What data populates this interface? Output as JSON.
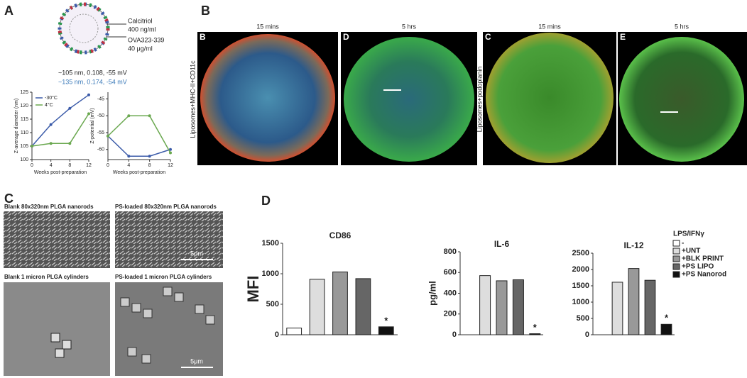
{
  "panel_labels": [
    "A",
    "B",
    "C",
    "D"
  ],
  "liposome": {
    "drug1": "Calcitriol",
    "dose1": "400 ng/ml",
    "drug2": "OVA323-339",
    "dose2": "40 μg/ml",
    "stats1": "~105 nm, 0.108, -55 mV",
    "stats2": "~135 nm, 0.174, -54 mV"
  },
  "microscopy": {
    "times": [
      "15 mins",
      "5 hrs",
      "15 mins",
      "5 hrs"
    ],
    "sub_labels": [
      "B",
      "D",
      "C",
      "E"
    ],
    "stains": [
      "Liposomes+MHC-II+CD11c",
      "Liposomes+podoplanin"
    ]
  },
  "sem": {
    "captions": [
      "Blank 80x320nm PLGA nanorods",
      "PS-loaded 80x320nm PLGA nanorods",
      "Blank 1 micron PLGA cylinders",
      "PS-loaded 1 micron PLGA cylinders"
    ],
    "scale_bars": [
      "5μm",
      "5μm"
    ]
  },
  "cytokine_legend": {
    "title": "LPS/IFNγ",
    "entries": [
      {
        "name": "-",
        "color": "#ffffff"
      },
      {
        "name": "+UNT",
        "color": "#dddddd"
      },
      {
        "name": "+BLK PRINT",
        "color": "#999999"
      },
      {
        "name": "+PS LIPO",
        "color": "#666666"
      },
      {
        "name": "+PS Nanorod",
        "color": "#111111"
      }
    ]
  },
  "chart_data": [
    {
      "type": "line",
      "y_label": "Z-average diameter (nm)",
      "x_label": "Weeks post-preparation",
      "x": [
        0,
        4,
        8,
        12
      ],
      "xlim": [
        0,
        12
      ],
      "xticks": [
        0,
        4,
        8,
        12
      ],
      "ylim": [
        100,
        125
      ],
      "yticks": [
        100,
        105,
        110,
        115,
        120,
        125
      ],
      "show_legend": true,
      "series": [
        {
          "name": "-30°C",
          "color": "#3b5ba9",
          "values": [
            105,
            113,
            119,
            124
          ]
        },
        {
          "name": "4°C",
          "color": "#6aa84f",
          "values": [
            105,
            106,
            106,
            117
          ]
        }
      ]
    },
    {
      "type": "line",
      "y_label": "Z-potential (mV)",
      "x_label": "Weeks post-preparation",
      "x": [
        0,
        4,
        8,
        12
      ],
      "xlim": [
        0,
        12
      ],
      "xticks": [
        0,
        4,
        8,
        12
      ],
      "ylim": [
        -63,
        -43
      ],
      "yticks": [
        -45,
        -50,
        -55,
        -60
      ],
      "show_legend": false,
      "series": [
        {
          "name": "-30°C",
          "color": "#3b5ba9",
          "values": [
            -56,
            -62,
            -62,
            -60
          ]
        },
        {
          "name": "4°C",
          "color": "#6aa84f",
          "values": [
            -56,
            -50,
            -50,
            -61
          ]
        }
      ]
    },
    {
      "type": "bar",
      "title": "CD86",
      "y_label": "MFI",
      "categories": [
        null,
        null,
        null,
        null,
        null
      ],
      "values": [
        110,
        910,
        1030,
        920,
        130
      ],
      "colors": [
        "#ffffff",
        "#dddddd",
        "#999999",
        "#666666",
        "#111111"
      ],
      "significance": [
        null,
        null,
        null,
        null,
        "*"
      ],
      "ylim": [
        0,
        1500
      ],
      "yticks": [
        0,
        500,
        1000,
        1500
      ]
    },
    {
      "type": "bar",
      "title": "IL-6",
      "y_label": "pg/ml",
      "categories": [
        null,
        null,
        null,
        null,
        null
      ],
      "values": [
        null,
        570,
        520,
        530,
        10
      ],
      "colors": [
        "#ffffff",
        "#dddddd",
        "#999999",
        "#666666",
        "#111111"
      ],
      "significance": [
        null,
        null,
        null,
        null,
        "*"
      ],
      "ylim": [
        0,
        800
      ],
      "yticks": [
        0,
        200,
        400,
        600,
        800
      ]
    },
    {
      "type": "bar",
      "title": "IL-12",
      "categories": [
        null,
        null,
        null,
        null,
        null
      ],
      "values": [
        0,
        1610,
        2030,
        1670,
        320
      ],
      "colors": [
        "#ffffff",
        "#dddddd",
        "#999999",
        "#666666",
        "#111111"
      ],
      "significance": [
        null,
        null,
        null,
        null,
        "*"
      ],
      "ylim": [
        0,
        2500
      ],
      "yticks": [
        0,
        500,
        1000,
        1500,
        2000,
        2500
      ]
    }
  ]
}
